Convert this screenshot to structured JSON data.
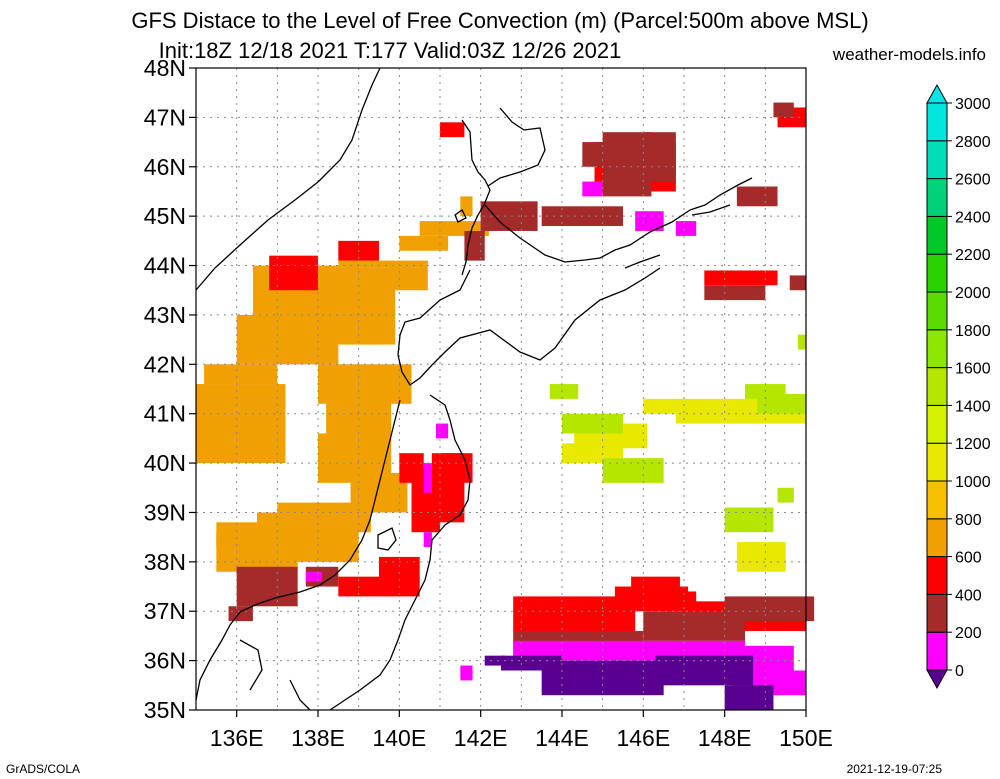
{
  "header": {
    "title_line1": "GFS Distace to the Level of Free Convection (m) (Parcel:500m above MSL)",
    "title_line2": "Init:18Z 12/18 2021 T:177 Valid:03Z 12/26 2021",
    "site": "weather-models.info"
  },
  "footer": {
    "credit": "GrADS/COLA",
    "timestamp": "2021-12-19-07:25"
  },
  "map": {
    "lat_labels": [
      "35N",
      "36N",
      "37N",
      "38N",
      "39N",
      "40N",
      "41N",
      "42N",
      "43N",
      "44N",
      "45N",
      "46N",
      "47N",
      "48N"
    ],
    "lon_labels": [
      "136E",
      "138E",
      "140E",
      "142E",
      "144E",
      "146E",
      "148E",
      "150E"
    ],
    "lat_range": [
      35,
      48
    ],
    "lon_range": [
      135,
      150
    ],
    "grid": true,
    "coastline_color": "#000000",
    "field": [
      {
        "color": "#f0a000",
        "cells": [
          [
            135.2,
            41.6,
            1.8,
            0.4
          ],
          [
            135.0,
            40.0,
            2.2,
            1.6
          ],
          [
            136.0,
            42.0,
            2.5,
            1.0
          ],
          [
            136.4,
            43.0,
            2.4,
            1.0
          ],
          [
            137.5,
            42.4,
            2.0,
            1.5
          ],
          [
            138.5,
            43.5,
            2.2,
            0.6
          ],
          [
            138.0,
            41.2,
            2.3,
            0.8
          ],
          [
            140.5,
            44.6,
            1.7,
            0.3
          ],
          [
            135.5,
            37.8,
            2.0,
            1.0
          ],
          [
            136.5,
            38.0,
            2.5,
            1.0
          ],
          [
            137.0,
            38.6,
            2.3,
            0.6
          ],
          [
            135.5,
            38.3,
            1.0,
            0.3
          ],
          [
            138.0,
            39.6,
            1.8,
            1.0
          ],
          [
            141.5,
            45.0,
            0.3,
            0.4
          ],
          [
            140.0,
            44.3,
            1.2,
            0.3
          ],
          [
            138.8,
            39.0,
            1.4,
            0.8
          ],
          [
            139.1,
            42.4,
            0.8,
            1.2
          ],
          [
            138.2,
            40.5,
            1.6,
            0.8
          ]
        ]
      },
      {
        "color": "#ff0000",
        "cells": [
          [
            136.8,
            43.5,
            1.2,
            0.7
          ],
          [
            138.5,
            44.1,
            1.0,
            0.4
          ],
          [
            140.3,
            38.6,
            0.7,
            1.3
          ],
          [
            140.8,
            38.8,
            0.8,
            1.4
          ],
          [
            141.0,
            39.6,
            0.8,
            0.6
          ],
          [
            140.0,
            39.6,
            0.6,
            0.6
          ],
          [
            138.5,
            37.3,
            2.0,
            0.4
          ],
          [
            139.5,
            37.6,
            1.0,
            0.5
          ],
          [
            142.8,
            36.6,
            3.0,
            0.7
          ],
          [
            145.3,
            37.0,
            1.8,
            0.5
          ],
          [
            146.5,
            37.0,
            0.8,
            0.4
          ],
          [
            147.0,
            36.6,
            3.0,
            0.6
          ],
          [
            144.8,
            45.5,
            2.0,
            1.0
          ],
          [
            149.3,
            46.8,
            0.7,
            0.4
          ],
          [
            141.0,
            46.6,
            0.6,
            0.3
          ],
          [
            147.5,
            43.6,
            1.8,
            0.3
          ],
          [
            145.7,
            37.3,
            1.2,
            0.4
          ]
        ]
      },
      {
        "color": "#a52a2a",
        "cells": [
          [
            142.0,
            44.7,
            1.4,
            0.6
          ],
          [
            143.5,
            44.8,
            2.0,
            0.4
          ],
          [
            145.0,
            45.4,
            1.2,
            1.3
          ],
          [
            146.0,
            45.7,
            0.8,
            1.0
          ],
          [
            144.5,
            46.0,
            0.8,
            0.5
          ],
          [
            136.0,
            37.1,
            1.5,
            0.8
          ],
          [
            137.7,
            37.5,
            0.8,
            0.4
          ],
          [
            142.8,
            36.1,
            3.2,
            0.5
          ],
          [
            146.0,
            36.4,
            2.5,
            0.6
          ],
          [
            148.0,
            36.8,
            2.2,
            0.5
          ],
          [
            141.6,
            44.1,
            0.5,
            0.6
          ],
          [
            147.5,
            43.3,
            1.5,
            0.3
          ],
          [
            149.6,
            43.5,
            0.4,
            0.3
          ],
          [
            148.3,
            45.2,
            1.0,
            0.4
          ],
          [
            149.2,
            47.0,
            0.5,
            0.3
          ],
          [
            135.8,
            36.8,
            0.6,
            0.3
          ]
        ]
      },
      {
        "color": "#ff00ff",
        "cells": [
          [
            144.5,
            45.4,
            0.5,
            0.3
          ],
          [
            145.8,
            44.7,
            0.7,
            0.4
          ],
          [
            146.8,
            44.6,
            0.5,
            0.3
          ],
          [
            142.8,
            36.0,
            3.3,
            0.4
          ],
          [
            146.0,
            35.9,
            2.5,
            0.5
          ],
          [
            148.2,
            35.4,
            1.5,
            0.9
          ],
          [
            149.0,
            35.3,
            1.0,
            0.5
          ],
          [
            140.6,
            39.4,
            0.2,
            0.6
          ],
          [
            140.6,
            38.3,
            0.2,
            0.3
          ],
          [
            137.7,
            37.6,
            0.4,
            0.2
          ],
          [
            141.5,
            35.6,
            0.3,
            0.3
          ],
          [
            140.9,
            40.5,
            0.3,
            0.3
          ]
        ]
      },
      {
        "color": "#5a0090",
        "cells": [
          [
            143.5,
            35.3,
            3.0,
            0.7
          ],
          [
            142.5,
            35.8,
            1.5,
            0.3
          ],
          [
            146.3,
            35.5,
            2.4,
            0.6
          ],
          [
            148.0,
            35.0,
            1.2,
            0.5
          ],
          [
            142.1,
            35.9,
            0.5,
            0.2
          ]
        ]
      },
      {
        "color": "#e8e800",
        "cells": [
          [
            146.8,
            40.8,
            3.2,
            0.5
          ],
          [
            146.0,
            41.0,
            1.0,
            0.3
          ],
          [
            148.3,
            37.8,
            1.2,
            0.6
          ],
          [
            144.3,
            40.3,
            1.8,
            0.5
          ],
          [
            144.0,
            40.0,
            1.5,
            0.4
          ]
        ]
      },
      {
        "color": "#b4e600",
        "cells": [
          [
            145.0,
            39.6,
            1.5,
            0.5
          ],
          [
            148.0,
            38.6,
            1.2,
            0.5
          ],
          [
            149.3,
            39.2,
            0.4,
            0.3
          ],
          [
            144.0,
            40.6,
            1.5,
            0.4
          ],
          [
            148.8,
            41.0,
            1.2,
            0.4
          ],
          [
            149.8,
            42.3,
            0.2,
            0.3
          ],
          [
            148.5,
            41.3,
            1.0,
            0.3
          ],
          [
            143.7,
            41.3,
            0.7,
            0.3
          ]
        ]
      }
    ]
  },
  "colorbar": {
    "labels": [
      "0",
      "200",
      "400",
      "600",
      "800",
      "1000",
      "1200",
      "1400",
      "1600",
      "1800",
      "2000",
      "2200",
      "2400",
      "2600",
      "2800",
      "3000"
    ],
    "colors": [
      "#5a0090",
      "#ff00ff",
      "#a52a2a",
      "#ff0000",
      "#f0a000",
      "#f5c000",
      "#e8e800",
      "#d2f000",
      "#b4e600",
      "#8ce600",
      "#5adc00",
      "#28d200",
      "#00c828",
      "#00d27a",
      "#00dcb4",
      "#00e6dc"
    ],
    "below_color": "#5a0090",
    "above_color": "#00e6e6"
  }
}
